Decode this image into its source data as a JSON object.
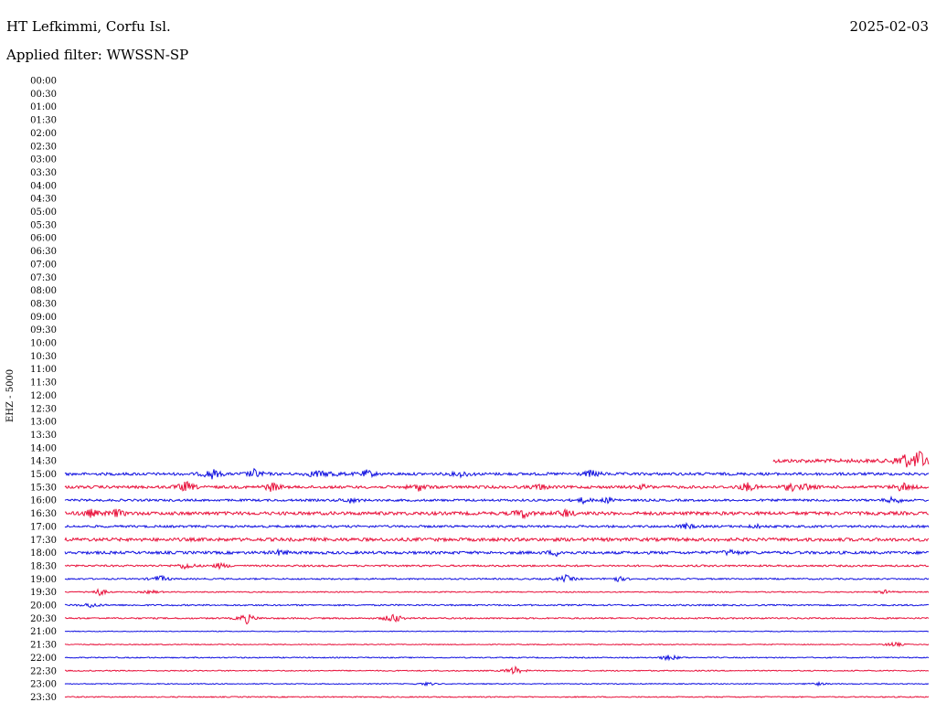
{
  "header": {
    "station": "HT Lefkimmi, Corfu Isl.",
    "date": "2025-02-03",
    "filter": "Applied filter: WWSSN-SP",
    "channel": "EHZ - 5000"
  },
  "colors": {
    "blue": "#1010e0",
    "red": "#e8103a"
  },
  "chart_data": {
    "type": "line",
    "title": "HT Lefkimmi, Corfu Isl.",
    "ylabel": "EHZ - 5000",
    "tick_labels": [
      "00:00",
      "00:30",
      "01:00",
      "01:30",
      "02:00",
      "02:30",
      "03:00",
      "03:30",
      "04:00",
      "04:30",
      "05:00",
      "05:30",
      "06:00",
      "06:30",
      "07:00",
      "07:30",
      "08:00",
      "08:30",
      "09:00",
      "09:30",
      "10:00",
      "10:30",
      "11:00",
      "11:30",
      "12:00",
      "12:30",
      "13:00",
      "13:30",
      "14:00",
      "14:30",
      "15:00",
      "15:30",
      "16:00",
      "16:30",
      "17:00",
      "17:30",
      "18:00",
      "18:30",
      "19:00",
      "19:30",
      "20:00",
      "20:30",
      "21:00",
      "21:30",
      "22:00",
      "22:30",
      "23:00",
      "23:30"
    ],
    "x_span_minutes": 30,
    "traces": [
      {
        "label": "14:30",
        "color": "red",
        "start_frac": 0.82,
        "noise": 2,
        "events": [
          [
            0.97,
            9
          ],
          [
            0.99,
            12
          ]
        ]
      },
      {
        "label": "15:00",
        "color": "blue",
        "start_frac": 0,
        "noise": 1.5,
        "events": [
          [
            0.17,
            6
          ],
          [
            0.22,
            5
          ],
          [
            0.29,
            4
          ],
          [
            0.31,
            3
          ],
          [
            0.35,
            4
          ],
          [
            0.46,
            3
          ],
          [
            0.61,
            4
          ]
        ]
      },
      {
        "label": "15:30",
        "color": "red",
        "start_frac": 0,
        "noise": 1.5,
        "events": [
          [
            0.14,
            6
          ],
          [
            0.24,
            5
          ],
          [
            0.41,
            4
          ],
          [
            0.55,
            3
          ],
          [
            0.67,
            2
          ],
          [
            0.79,
            5
          ],
          [
            0.84,
            4
          ],
          [
            0.86,
            3
          ],
          [
            0.97,
            5
          ]
        ]
      },
      {
        "label": "16:00",
        "color": "blue",
        "start_frac": 0,
        "noise": 1.2,
        "events": [
          [
            0.33,
            3
          ],
          [
            0.6,
            3
          ],
          [
            0.63,
            3
          ],
          [
            0.96,
            4
          ]
        ]
      },
      {
        "label": "16:30",
        "color": "red",
        "start_frac": 0,
        "noise": 1.8,
        "events": [
          [
            0.03,
            4
          ],
          [
            0.06,
            4
          ],
          [
            0.53,
            5
          ],
          [
            0.58,
            4
          ]
        ]
      },
      {
        "label": "17:00",
        "color": "blue",
        "start_frac": 0,
        "noise": 1.2,
        "events": [
          [
            0.72,
            3
          ],
          [
            0.8,
            2
          ]
        ]
      },
      {
        "label": "17:30",
        "color": "red",
        "start_frac": 0,
        "noise": 1.8,
        "events": []
      },
      {
        "label": "18:00",
        "color": "blue",
        "start_frac": 0,
        "noise": 1.5,
        "events": [
          [
            0.25,
            3
          ],
          [
            0.57,
            3
          ],
          [
            0.77,
            3
          ]
        ]
      },
      {
        "label": "18:30",
        "color": "red",
        "start_frac": 0,
        "noise": 1,
        "events": [
          [
            0.14,
            4
          ],
          [
            0.18,
            3
          ]
        ]
      },
      {
        "label": "19:00",
        "color": "blue",
        "start_frac": 0,
        "noise": 0.8,
        "events": [
          [
            0.11,
            4
          ],
          [
            0.58,
            4
          ],
          [
            0.64,
            3
          ]
        ]
      },
      {
        "label": "19:30",
        "color": "red",
        "start_frac": 0,
        "noise": 0.6,
        "events": [
          [
            0.04,
            4
          ],
          [
            0.1,
            2
          ],
          [
            0.95,
            2
          ]
        ]
      },
      {
        "label": "20:00",
        "color": "blue",
        "start_frac": 0,
        "noise": 0.8,
        "events": [
          [
            0.03,
            3
          ]
        ]
      },
      {
        "label": "20:30",
        "color": "red",
        "start_frac": 0,
        "noise": 0.8,
        "events": [
          [
            0.21,
            6
          ],
          [
            0.38,
            6
          ]
        ]
      },
      {
        "label": "21:00",
        "color": "blue",
        "start_frac": 0,
        "noise": 0.4,
        "events": []
      },
      {
        "label": "21:30",
        "color": "red",
        "start_frac": 0,
        "noise": 0.5,
        "events": [
          [
            0.96,
            3
          ]
        ]
      },
      {
        "label": "22:00",
        "color": "blue",
        "start_frac": 0,
        "noise": 0.6,
        "events": [
          [
            0.7,
            4
          ]
        ]
      },
      {
        "label": "22:30",
        "color": "red",
        "start_frac": 0,
        "noise": 0.6,
        "events": [
          [
            0.52,
            5
          ]
        ]
      },
      {
        "label": "23:00",
        "color": "blue",
        "start_frac": 0,
        "noise": 0.5,
        "events": [
          [
            0.42,
            2
          ],
          [
            0.87,
            2
          ]
        ]
      },
      {
        "label": "23:30",
        "color": "red",
        "start_frac": 0,
        "noise": 0.6,
        "events": []
      }
    ]
  }
}
